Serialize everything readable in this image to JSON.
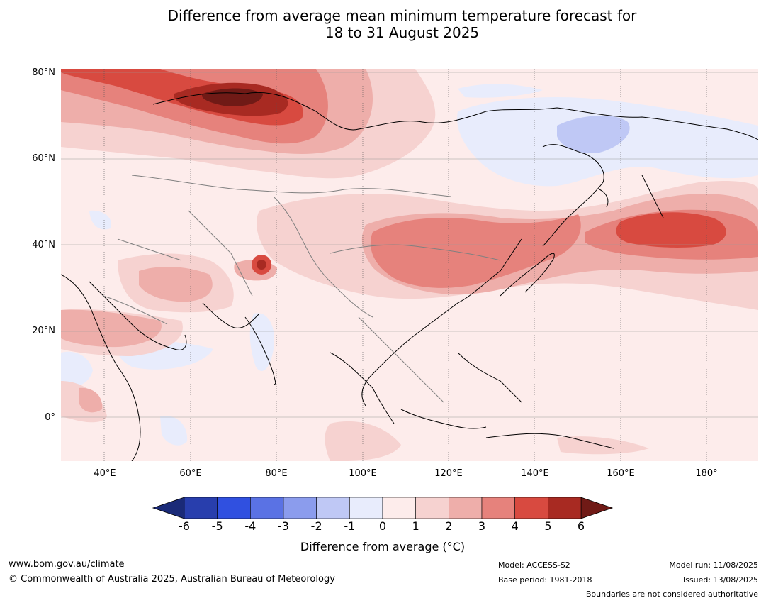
{
  "title": {
    "line1": "Difference from average mean minimum temperature forecast for",
    "line2": "18 to 31 August 2025"
  },
  "axes": {
    "lat_labels": [
      "80°N",
      "60°N",
      "40°N",
      "20°N",
      "0°"
    ],
    "lon_labels": [
      "40°E",
      "60°E",
      "80°E",
      "100°E",
      "120°E",
      "140°E",
      "160°E",
      "180°"
    ]
  },
  "colorbar": {
    "ticks": [
      "-6",
      "-5",
      "-4",
      "-3",
      "-2",
      "-1",
      "0",
      "1",
      "2",
      "3",
      "4",
      "5",
      "6"
    ],
    "colors": [
      "#1a2a78",
      "#283ead",
      "#3050e0",
      "#5a72e4",
      "#8b9ced",
      "#bfc8f5",
      "#e8ecfc",
      "#fdeceb",
      "#f6d2d0",
      "#eeaeaa",
      "#e6827c",
      "#d84a40",
      "#a82a22",
      "#701a16"
    ],
    "label": "Difference from average (°C)"
  },
  "footer": {
    "website": "www.bom.gov.au/climate",
    "copyright": "© Commonwealth of Australia 2025, Australian Bureau of Meteorology",
    "model": "Model: ACCESS-S2",
    "base_period": "Base period: 1981-2018",
    "model_run": "Model run: 11/08/2025",
    "issued": "Issued: 13/08/2025",
    "disclaimer": "Boundaries are not considered authoritative"
  }
}
